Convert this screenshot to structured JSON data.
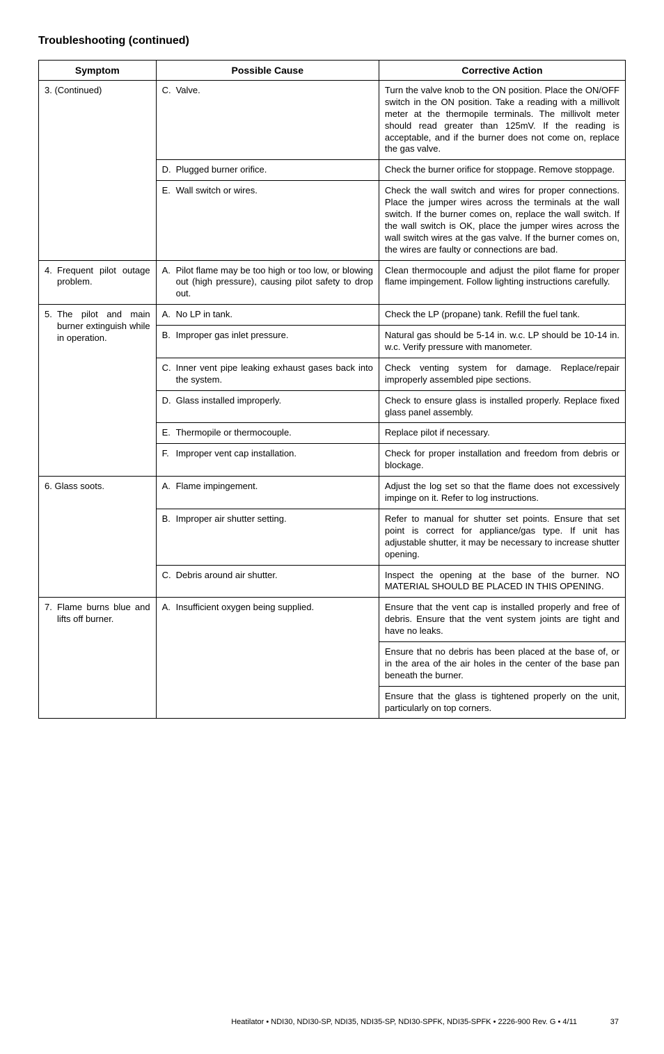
{
  "page_title": "Troubleshooting (continued)",
  "table": {
    "headers": [
      "Symptom",
      "Possible Cause",
      "Corrective Action"
    ],
    "rows": [
      {
        "symptom": "3. (Continued)",
        "sym_rowspan": 3,
        "cause": "C.  Valve.",
        "action": "Turn the valve knob to the ON position. Place the ON/OFF switch in the ON position. Take a reading with a millivolt meter at the thermopile terminals. The millivolt meter should read greater than 125mV. If the reading is acceptable, and if the burner does not come on, replace the gas valve."
      },
      {
        "cause": "D. Plugged burner orifice.",
        "action": "Check the burner orifice for stoppage. Remove stoppage."
      },
      {
        "cause": "E. Wall switch or wires.",
        "action": "Check the wall switch and wires for proper connections. Place the jumper wires across the terminals at the wall switch. If the burner comes on, replace the wall switch. If the wall switch is OK, place the jumper wires across the wall switch wires at the gas valve. If the burner comes on, the wires are faulty or connections are bad."
      },
      {
        "symptom": "4. Frequent pilot outage problem.",
        "sym_rowspan": 1,
        "sym_indent": true,
        "cause": "A.  Pilot flame may be too high or too low, or blowing out (high pressure), causing pilot safety to drop out.",
        "action": "Clean thermocouple and adjust the pilot flame for proper flame impingement. Follow lighting instructions carefully."
      },
      {
        "symptom": "5. The pilot and main burner extinguish while in operation.",
        "sym_rowspan": 6,
        "sym_indent": true,
        "cause": "A.  No LP in tank.",
        "action": "Check the LP (propane) tank. Refill the fuel tank."
      },
      {
        "cause": "B.  Improper gas inlet pressure.",
        "action": "Natural gas should be 5-14 in. w.c.  LP should be 10-14 in. w.c.  Verify pressure with manometer."
      },
      {
        "cause": "C.  Inner vent pipe leaking exhaust gases back into the system.",
        "action": "Check venting system for damage. Replace/repair improperly assembled pipe sections."
      },
      {
        "cause": "D. Glass installed improperly.",
        "action": "Check to ensure glass is installed properly.  Replace fixed glass panel assembly."
      },
      {
        "cause": "E. Thermopile or thermocouple.",
        "action": "Replace pilot if necessary."
      },
      {
        "cause": "F. Improper vent cap installation.",
        "action": "Check for proper installation and freedom from debris or blockage."
      },
      {
        "symptom": "6. Glass soots.",
        "sym_rowspan": 3,
        "cause": "A. Flame impingement.",
        "action": "Adjust the log set so that the flame does not excessively impinge on it. Refer to log instructions."
      },
      {
        "cause": "B. Improper air shutter setting.",
        "action": "Refer to manual for shutter set points.  Ensure that set point is correct for appliance/gas type.  If unit has adjustable shutter, it may be necessary to increase shutter opening."
      },
      {
        "cause": "C. Debris around air shutter.",
        "action": "Inspect the opening at the base of the burner. NO MATERIAL SHOULD BE PLACED IN THIS OPENING."
      },
      {
        "symptom": "7.  Flame burns blue and lifts off burner.",
        "sym_rowspan": 3,
        "sym_indent": true,
        "cause": "A. Insufficient oxygen being supplied.",
        "cause_rowspan": 3,
        "action": "Ensure that the vent cap is installed properly and free of debris. Ensure that the vent system joints are tight and have no leaks."
      },
      {
        "action": "Ensure that no debris has been placed at the base of, or in the area of the air holes in the center of the base pan beneath the burner."
      },
      {
        "action": "Ensure that the glass is tightened properly on the unit, particularly on top corners."
      }
    ]
  },
  "footer": {
    "text": "Heatilator  •  NDI30, NDI30-SP, NDI35, NDI35-SP, NDI30-SPFK, NDI35-SPFK  •  2226-900 Rev. G  •  4/11",
    "page_number": "37"
  }
}
